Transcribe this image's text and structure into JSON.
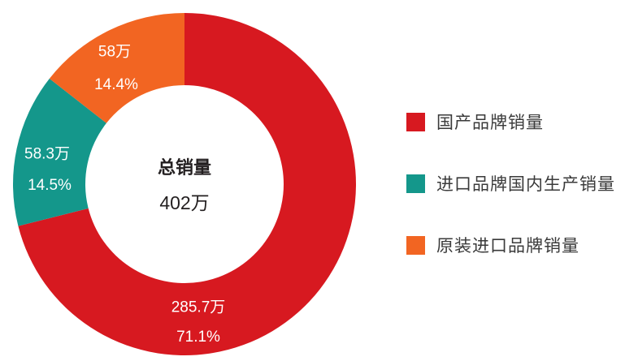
{
  "chart_data": {
    "type": "pie",
    "variant": "donut",
    "title": "",
    "center": {
      "title": "总销量",
      "value": "402万"
    },
    "categories": [
      "国产品牌销量",
      "进口品牌国内生产销量",
      "原装进口品牌销量"
    ],
    "values": [
      285.7,
      58.3,
      58
    ],
    "unit": "万",
    "percentages": [
      71.1,
      14.5,
      14.4
    ],
    "colors": [
      "#d71920",
      "#14978b",
      "#f26522"
    ],
    "labels": [
      {
        "value": "285.7万",
        "percent": "71.1%"
      },
      {
        "value": "58.3万",
        "percent": "14.5%"
      },
      {
        "value": "58万",
        "percent": "14.4%"
      }
    ],
    "legend_position": "right",
    "start_angle_deg": 0,
    "direction": "clockwise"
  },
  "legend": {
    "items": [
      {
        "label": "国产品牌销量",
        "color": "#d71920"
      },
      {
        "label": "进口品牌国内生产销量",
        "color": "#14978b"
      },
      {
        "label": "原装进口品牌销量",
        "color": "#f26522"
      }
    ]
  }
}
